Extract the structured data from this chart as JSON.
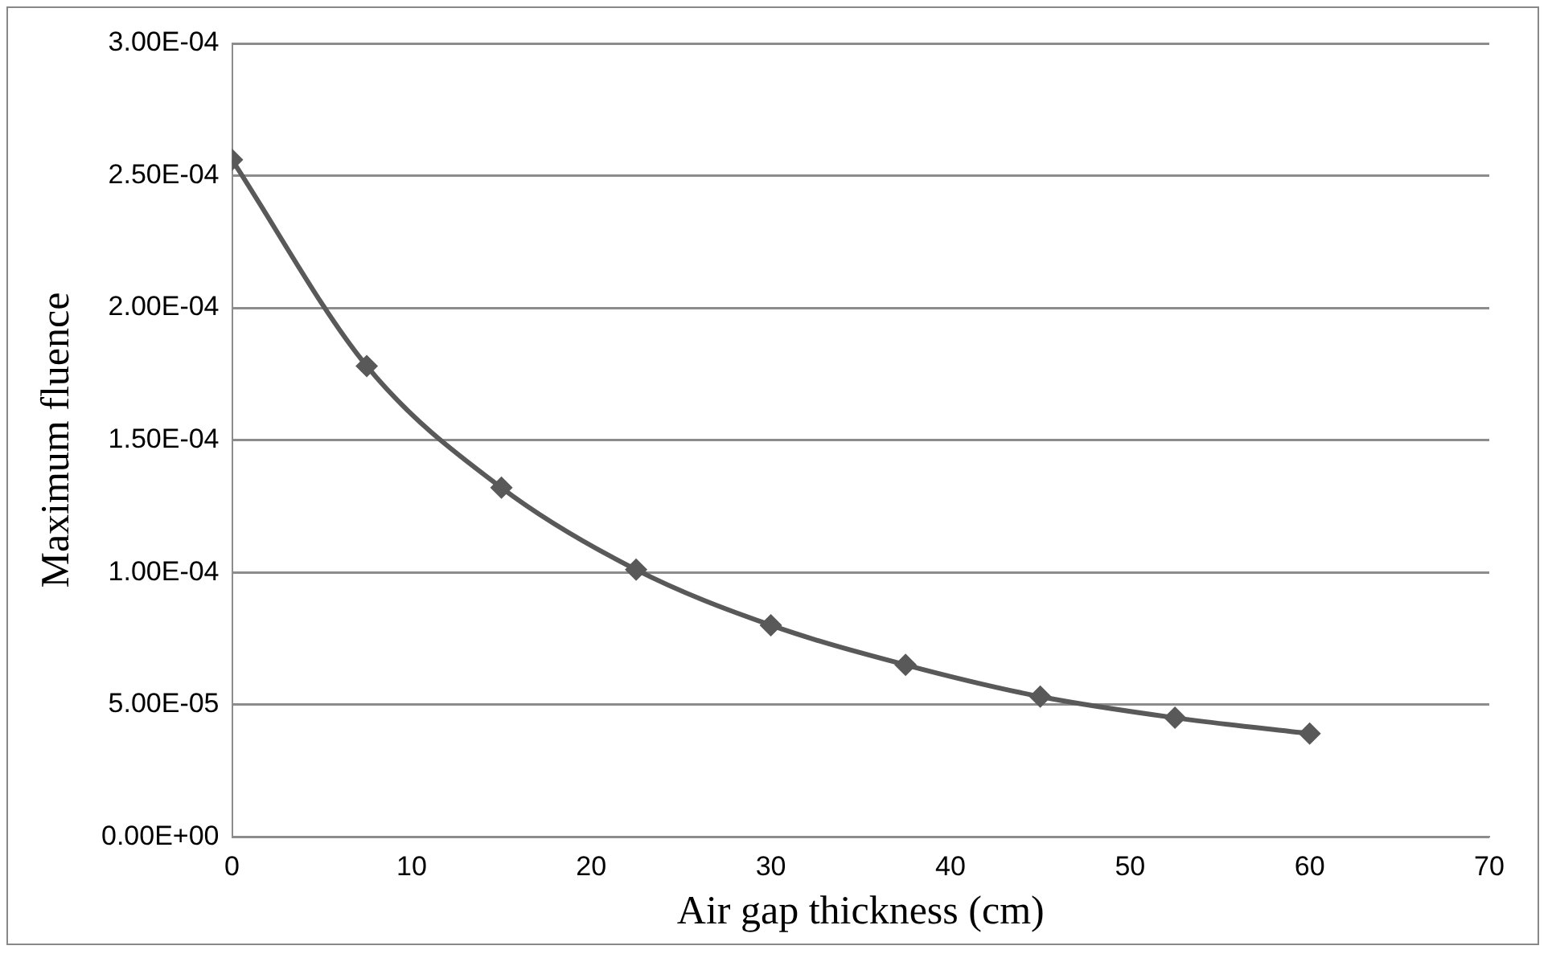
{
  "chart_data": {
    "type": "line",
    "xlabel": "Air gap thickness (cm)",
    "ylabel": "Maximum fluence",
    "x": [
      0,
      7.5,
      15,
      22.5,
      30,
      37.5,
      45,
      52.5,
      60
    ],
    "series": [
      {
        "color": "#595959",
        "values": [
          0.000256,
          0.000178,
          0.000132,
          0.000101,
          8e-05,
          6.5e-05,
          5.3e-05,
          4.5e-05,
          3.9e-05
        ]
      }
    ],
    "xlim": [
      0,
      70
    ],
    "xticks": [
      0,
      10,
      20,
      30,
      40,
      50,
      60,
      70
    ],
    "ylim": [
      0,
      0.0003
    ],
    "yticks": [
      {
        "value": 0,
        "label": "0.00E+00"
      },
      {
        "value": 5e-05,
        "label": "5.00E-05"
      },
      {
        "value": 0.0001,
        "label": "1.00E-04"
      },
      {
        "value": 0.00015,
        "label": "1.50E-04"
      },
      {
        "value": 0.0002,
        "label": "2.00E-04"
      },
      {
        "value": 0.00025,
        "label": "2.50E-04"
      },
      {
        "value": 0.0003,
        "label": "3.00E-04"
      }
    ],
    "grid": "y",
    "legend": false,
    "marker": "diamond",
    "line_style": "solid"
  }
}
